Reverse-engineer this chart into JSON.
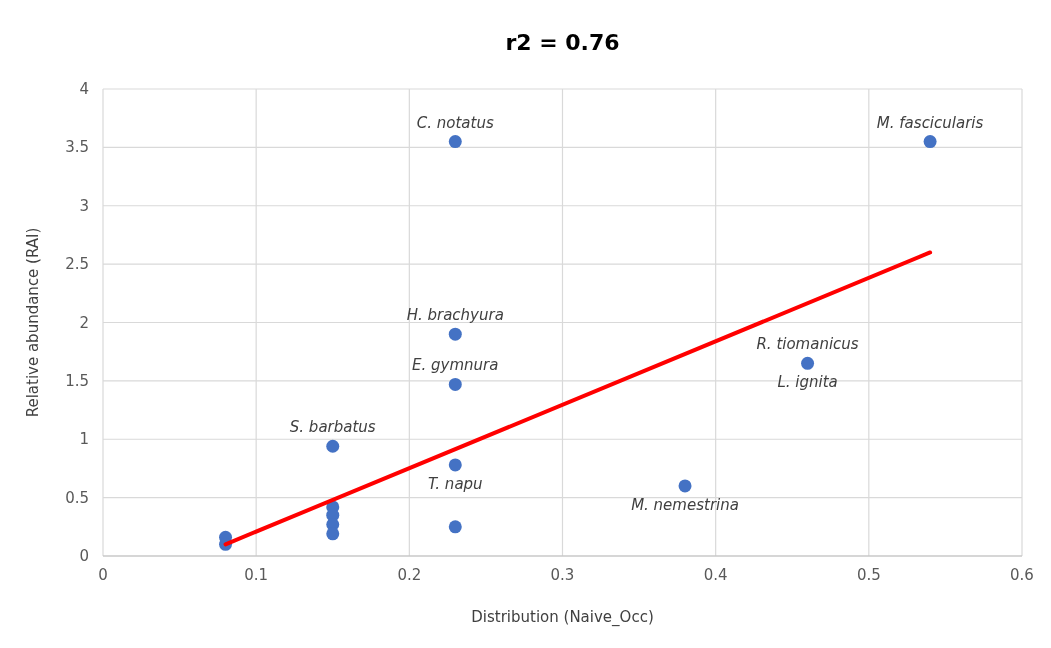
{
  "chart_data": {
    "type": "scatter",
    "title": "r2 = 0.76",
    "xlabel": "Distribution (Naive_Occ)",
    "ylabel": "Relative abundance (RAI)",
    "xlim": [
      0,
      0.6
    ],
    "xticks": [
      0,
      0.1,
      0.2,
      0.3,
      0.4,
      0.5,
      0.6
    ],
    "ylim": [
      0,
      4
    ],
    "yticks": [
      0,
      0.5,
      1,
      1.5,
      2,
      2.5,
      3,
      3.5,
      4
    ],
    "grid": true,
    "marker": "circle",
    "series": [
      {
        "color": "#4472c4",
        "x": [
          0.08,
          0.08,
          0.15,
          0.15,
          0.15,
          0.15,
          0.15,
          0.23,
          0.23,
          0.23,
          0.23,
          0.23,
          0.38,
          0.46,
          0.54
        ],
        "values": [
          0.16,
          0.1,
          0.94,
          0.42,
          0.35,
          0.27,
          0.19,
          3.55,
          1.9,
          1.47,
          0.78,
          0.25,
          0.6,
          1.65,
          3.55
        ]
      },
      {
        "type": "line",
        "marker": "none",
        "color": "#ff0000",
        "x": [
          0.08,
          0.54
        ],
        "values": [
          0.1,
          2.6
        ]
      }
    ],
    "annotations": [
      {
        "text": "C. notatus",
        "x": 0.23,
        "y": 3.55
      },
      {
        "text": "M. fascicularis",
        "x": 0.54,
        "y": 3.55
      },
      {
        "text": "H. brachyura",
        "x": 0.23,
        "y": 1.9
      },
      {
        "text": "E. gymnura",
        "x": 0.23,
        "y": 1.47
      },
      {
        "text": "R. tiomanicus",
        "x": 0.46,
        "y": 1.65
      },
      {
        "text": "L. ignita",
        "x": 0.46,
        "y": 1.65
      },
      {
        "text": "S. barbatus",
        "x": 0.15,
        "y": 0.94
      },
      {
        "text": "T. napu",
        "x": 0.23,
        "y": 0.78
      },
      {
        "text": "M. nemestrina",
        "x": 0.38,
        "y": 0.6
      }
    ]
  }
}
